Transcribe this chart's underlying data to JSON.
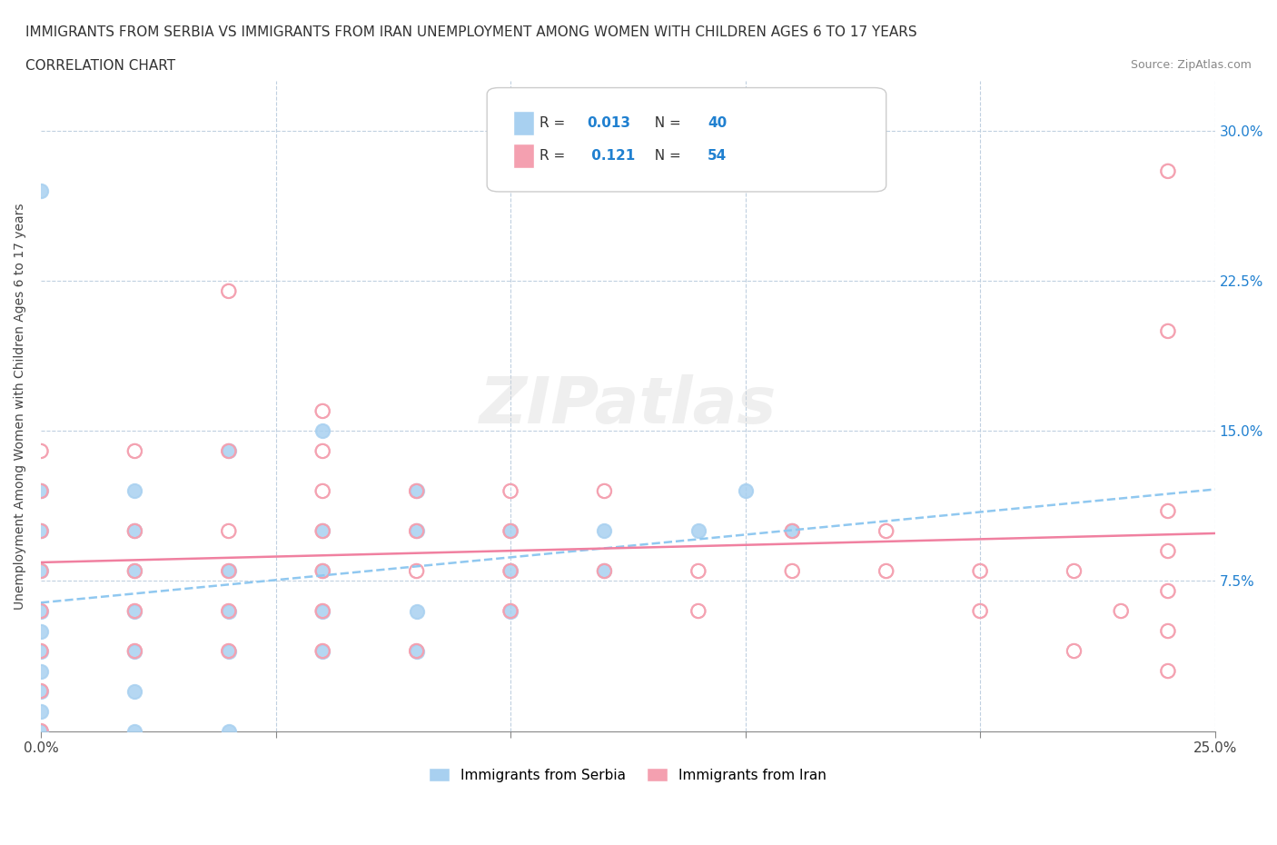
{
  "title_line1": "IMMIGRANTS FROM SERBIA VS IMMIGRANTS FROM IRAN UNEMPLOYMENT AMONG WOMEN WITH CHILDREN AGES 6 TO 17 YEARS",
  "title_line2": "CORRELATION CHART",
  "source": "Source: ZipAtlas.com",
  "ylabel": "Unemployment Among Women with Children Ages 6 to 17 years",
  "xlabel_bottom": "",
  "xlim": [
    0.0,
    0.25
  ],
  "ylim": [
    0.0,
    0.325
  ],
  "x_ticks": [
    0.0,
    0.05,
    0.1,
    0.15,
    0.2,
    0.25
  ],
  "x_tick_labels": [
    "0.0%",
    "",
    "",
    "",
    "",
    "25.0%"
  ],
  "y_ticks": [
    0.0,
    0.075,
    0.15,
    0.225,
    0.3
  ],
  "y_tick_labels_right": [
    "",
    "7.5%",
    "15.0%",
    "22.5%",
    "30.0%"
  ],
  "watermark": "ZIPatlas",
  "serbia_color": "#a8d0f0",
  "iran_color": "#f4a0b0",
  "serbia_line_color": "#90c8f0",
  "iran_line_color": "#f080a0",
  "grid_color": "#c0d0e0",
  "legend_serbia_R": "0.013",
  "legend_serbia_N": "40",
  "legend_iran_R": "0.121",
  "legend_iran_N": "54",
  "serbia_x": [
    0.0,
    0.0,
    0.0,
    0.0,
    0.0,
    0.0,
    0.0,
    0.0,
    0.0,
    0.0,
    0.0,
    0.02,
    0.02,
    0.02,
    0.02,
    0.02,
    0.02,
    0.02,
    0.04,
    0.04,
    0.04,
    0.04,
    0.04,
    0.06,
    0.06,
    0.06,
    0.06,
    0.06,
    0.08,
    0.08,
    0.08,
    0.08,
    0.1,
    0.1,
    0.1,
    0.12,
    0.12,
    0.14,
    0.15,
    0.16
  ],
  "serbia_y": [
    0.0,
    0.01,
    0.02,
    0.03,
    0.04,
    0.05,
    0.06,
    0.08,
    0.1,
    0.12,
    0.27,
    0.0,
    0.02,
    0.04,
    0.06,
    0.08,
    0.1,
    0.12,
    0.0,
    0.04,
    0.06,
    0.08,
    0.14,
    0.04,
    0.06,
    0.08,
    0.1,
    0.15,
    0.04,
    0.06,
    0.1,
    0.12,
    0.06,
    0.08,
    0.1,
    0.08,
    0.1,
    0.1,
    0.12,
    0.1
  ],
  "iran_x": [
    0.0,
    0.0,
    0.0,
    0.0,
    0.0,
    0.0,
    0.0,
    0.0,
    0.02,
    0.02,
    0.02,
    0.02,
    0.02,
    0.04,
    0.04,
    0.04,
    0.04,
    0.04,
    0.04,
    0.06,
    0.06,
    0.06,
    0.06,
    0.06,
    0.06,
    0.06,
    0.08,
    0.08,
    0.08,
    0.08,
    0.1,
    0.1,
    0.1,
    0.1,
    0.12,
    0.12,
    0.14,
    0.14,
    0.16,
    0.16,
    0.18,
    0.18,
    0.2,
    0.2,
    0.22,
    0.22,
    0.23,
    0.24,
    0.24,
    0.24,
    0.24,
    0.24,
    0.24,
    0.24
  ],
  "iran_y": [
    0.0,
    0.02,
    0.04,
    0.06,
    0.08,
    0.1,
    0.12,
    0.14,
    0.04,
    0.06,
    0.08,
    0.1,
    0.14,
    0.04,
    0.06,
    0.08,
    0.1,
    0.14,
    0.22,
    0.04,
    0.06,
    0.08,
    0.1,
    0.12,
    0.14,
    0.16,
    0.04,
    0.08,
    0.1,
    0.12,
    0.06,
    0.08,
    0.1,
    0.12,
    0.08,
    0.12,
    0.06,
    0.08,
    0.08,
    0.1,
    0.08,
    0.1,
    0.06,
    0.08,
    0.04,
    0.08,
    0.06,
    0.03,
    0.05,
    0.07,
    0.09,
    0.11,
    0.2,
    0.28
  ]
}
